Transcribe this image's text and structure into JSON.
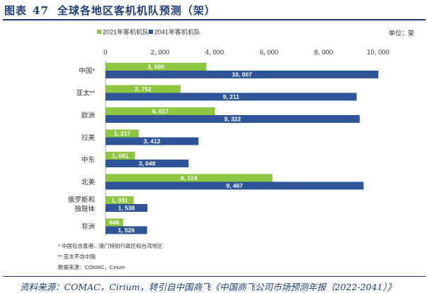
{
  "figure": {
    "label": "图表",
    "number": "47",
    "title": "全球各地区客机机队预测（架）",
    "unit": "单位：架",
    "notes": [
      "* 中国包含香港、澳门特别行政区和台湾地区",
      "** 亚太不含中国",
      "数据来源：COMAC，Cirium"
    ],
    "source": "资料来源：COMAC，Cirium，转引自中国商飞《中国商飞公司市场预测年报（2022-2041）》"
  },
  "colors": {
    "series_2021": "#8dc63f",
    "series_2041": "#2e5597",
    "title": "#1f3f7a"
  },
  "chart_data": {
    "type": "bar",
    "orientation": "horizontal",
    "categories": [
      "中国*",
      "亚太**",
      "欧洲",
      "拉美",
      "中东",
      "北美",
      "俄罗斯和独联体",
      "非洲"
    ],
    "category_lines": [
      [
        "中国*"
      ],
      [
        "亚太**"
      ],
      [
        "欧洲"
      ],
      [
        "拉美"
      ],
      [
        "中东"
      ],
      [
        "北美"
      ],
      [
        "俄罗斯和",
        "独联体"
      ],
      [
        "非洲"
      ]
    ],
    "series": [
      {
        "name": "2021年客机机队",
        "values": [
          3695,
          2752,
          4017,
          1217,
          1081,
          6124,
          1031,
          646
        ],
        "labels": [
          "3, 695",
          "2, 752",
          "4, 017",
          "1, 217",
          "1, 081",
          "6, 124",
          "1, 031",
          "646"
        ]
      },
      {
        "name": "2041年客机机队",
        "values": [
          10007,
          9211,
          9322,
          3412,
          3048,
          9467,
          1538,
          1526
        ],
        "labels": [
          "10, 007",
          "9, 211",
          "9, 322",
          "3, 412",
          "3, 048",
          "9, 467",
          "1, 538",
          "1, 526"
        ]
      }
    ],
    "xlim": [
      0,
      10000
    ],
    "ticks": [
      0,
      2000,
      4000,
      6000,
      8000,
      10000
    ],
    "tick_labels": [
      "0",
      "2, 000",
      "4, 000",
      "6, 000",
      "8, 000",
      "10, 000"
    ],
    "legend_position": "top-left",
    "grid": false
  }
}
